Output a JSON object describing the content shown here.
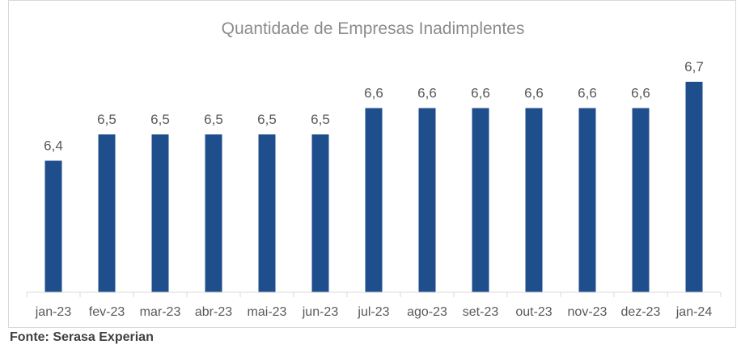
{
  "chart_data": {
    "type": "bar",
    "title": "Quantidade de Empresas Inadimplentes",
    "xlabel": "",
    "ylabel": "",
    "categories": [
      "jan-23",
      "fev-23",
      "mar-23",
      "abr-23",
      "mai-23",
      "jun-23",
      "jul-23",
      "ago-23",
      "set-23",
      "out-23",
      "nov-23",
      "dez-23",
      "jan-24"
    ],
    "values": [
      6.4,
      6.5,
      6.5,
      6.5,
      6.5,
      6.5,
      6.6,
      6.6,
      6.6,
      6.6,
      6.6,
      6.6,
      6.7
    ],
    "data_labels": [
      "6,4",
      "6,5",
      "6,5",
      "6,5",
      "6,5",
      "6,5",
      "6,6",
      "6,6",
      "6,6",
      "6,6",
      "6,6",
      "6,6",
      "6,7"
    ],
    "ylim": [
      5.9,
      6.7
    ],
    "grid": false,
    "legend": "none",
    "bar_color": "#1f4e8c"
  },
  "footer": {
    "source": "Fonte: Serasa Experian"
  }
}
